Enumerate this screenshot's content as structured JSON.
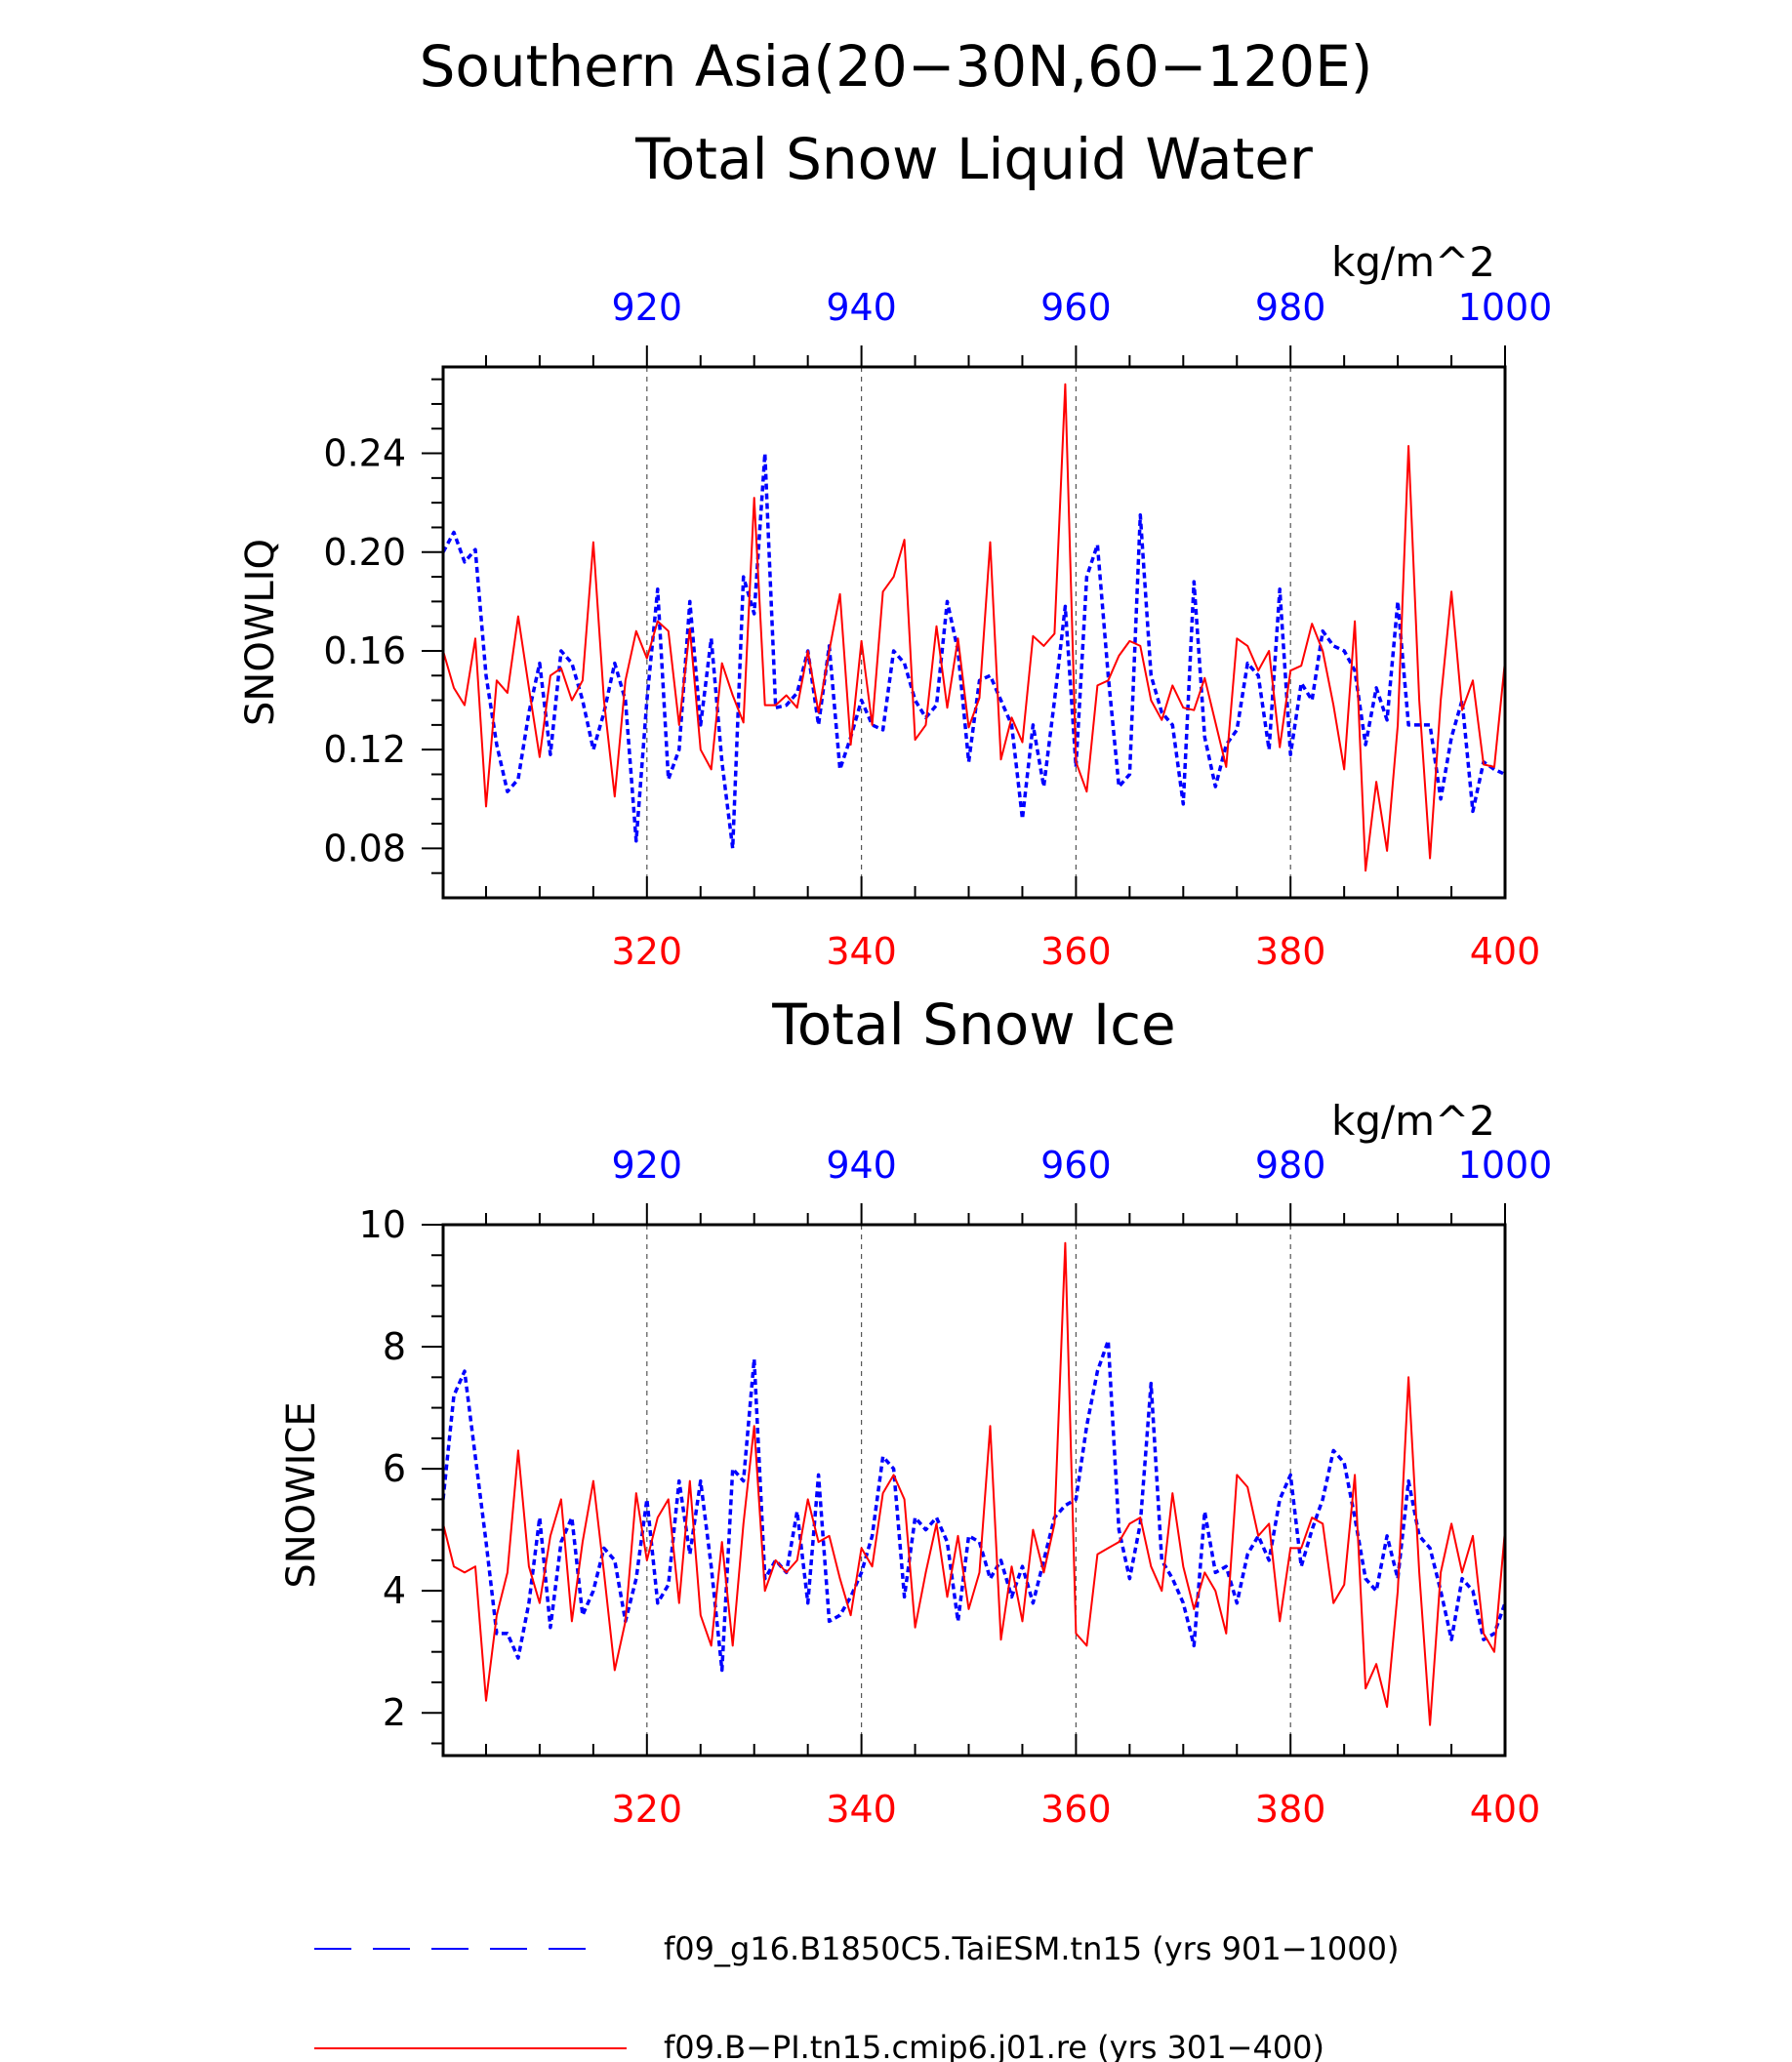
{
  "title_line1": "Southern Asia(20−30N,60−120E)",
  "colors": {
    "blue": "#0000ff",
    "red": "#ff0000",
    "axis": "#000000",
    "grid": "#555555"
  },
  "chart_data": [
    {
      "type": "line",
      "title": "Total Snow Liquid Water",
      "units": "kg/m^2",
      "ylabel": "SNOWLIQ",
      "ylim": [
        0.06,
        0.275
      ],
      "yticks": [
        "0.08",
        "0.12",
        "0.16",
        "0.20",
        "0.24"
      ],
      "top_xlim": [
        901,
        1000
      ],
      "top_xticks": [
        "920",
        "940",
        "960",
        "980",
        "1000"
      ],
      "bottom_xlim": [
        301,
        400
      ],
      "bottom_xticks": [
        "320",
        "340",
        "360",
        "380",
        "400"
      ],
      "grid": "vertical dashed at labeled ticks",
      "series": [
        {
          "name": "f09_g16.B1850C5.TaiESM.tn15 (yrs 901−1000)",
          "style": "dashed",
          "color": "#0000ff",
          "xaxis": "top",
          "x_start": 901,
          "values": [
            0.2,
            0.208,
            0.196,
            0.201,
            0.15,
            0.122,
            0.103,
            0.108,
            0.135,
            0.155,
            0.118,
            0.16,
            0.155,
            0.14,
            0.12,
            0.135,
            0.155,
            0.14,
            0.083,
            0.14,
            0.185,
            0.108,
            0.12,
            0.18,
            0.13,
            0.165,
            0.115,
            0.08,
            0.19,
            0.175,
            0.24,
            0.137,
            0.138,
            0.143,
            0.16,
            0.13,
            0.162,
            0.112,
            0.125,
            0.14,
            0.13,
            0.128,
            0.16,
            0.155,
            0.14,
            0.133,
            0.138,
            0.18,
            0.16,
            0.115,
            0.148,
            0.15,
            0.14,
            0.13,
            0.092,
            0.13,
            0.105,
            0.14,
            0.178,
            0.113,
            0.19,
            0.203,
            0.15,
            0.105,
            0.11,
            0.215,
            0.15,
            0.135,
            0.13,
            0.098,
            0.188,
            0.125,
            0.105,
            0.122,
            0.128,
            0.155,
            0.15,
            0.12,
            0.185,
            0.118,
            0.147,
            0.14,
            0.168,
            0.162,
            0.16,
            0.152,
            0.122,
            0.145,
            0.132,
            0.18,
            0.13,
            0.13,
            0.13,
            0.1,
            0.125,
            0.14,
            0.095,
            0.115,
            0.112,
            0.11
          ]
        },
        {
          "name": "f09.B−PI.tn15.cmip6.j01.re (yrs 301−400)",
          "style": "solid",
          "color": "#ff0000",
          "xaxis": "bottom",
          "x_start": 301,
          "values": [
            0.16,
            0.145,
            0.138,
            0.165,
            0.097,
            0.148,
            0.143,
            0.174,
            0.145,
            0.117,
            0.15,
            0.153,
            0.14,
            0.148,
            0.204,
            0.14,
            0.101,
            0.148,
            0.168,
            0.157,
            0.172,
            0.168,
            0.13,
            0.169,
            0.12,
            0.112,
            0.155,
            0.142,
            0.131,
            0.222,
            0.138,
            0.138,
            0.142,
            0.137,
            0.16,
            0.135,
            0.16,
            0.183,
            0.122,
            0.164,
            0.13,
            0.184,
            0.19,
            0.205,
            0.124,
            0.13,
            0.17,
            0.137,
            0.165,
            0.129,
            0.141,
            0.204,
            0.116,
            0.133,
            0.123,
            0.166,
            0.162,
            0.167,
            0.268,
            0.115,
            0.103,
            0.146,
            0.148,
            0.158,
            0.164,
            0.162,
            0.14,
            0.132,
            0.146,
            0.137,
            0.136,
            0.149,
            0.131,
            0.113,
            0.165,
            0.162,
            0.152,
            0.16,
            0.121,
            0.152,
            0.154,
            0.171,
            0.16,
            0.138,
            0.112,
            0.172,
            0.071,
            0.107,
            0.079,
            0.13,
            0.243,
            0.14,
            0.076,
            0.14,
            0.184,
            0.136,
            0.148,
            0.114,
            0.113,
            0.156
          ]
        }
      ]
    },
    {
      "type": "line",
      "title": "Total Snow Ice",
      "units": "kg/m^2",
      "ylabel": "SNOWICE",
      "ylim": [
        1.3,
        10
      ],
      "yticks": [
        "2",
        "4",
        "6",
        "8",
        "10"
      ],
      "top_xlim": [
        901,
        1000
      ],
      "top_xticks": [
        "920",
        "940",
        "960",
        "980",
        "1000"
      ],
      "bottom_xlim": [
        301,
        400
      ],
      "bottom_xticks": [
        "320",
        "340",
        "360",
        "380",
        "400"
      ],
      "grid": "vertical dashed at labeled ticks",
      "series": [
        {
          "name": "f09_g16.B1850C5.TaiESM.tn15 (yrs 901−1000)",
          "style": "dashed",
          "color": "#0000ff",
          "xaxis": "top",
          "x_start": 901,
          "values": [
            5.5,
            7.2,
            7.6,
            6.2,
            4.8,
            3.3,
            3.3,
            2.9,
            3.8,
            5.2,
            3.4,
            4.8,
            5.2,
            3.6,
            4.0,
            4.7,
            4.5,
            3.5,
            4.2,
            5.5,
            3.8,
            4.1,
            5.8,
            4.6,
            5.8,
            4.4,
            2.7,
            6.0,
            5.8,
            7.8,
            4.2,
            4.5,
            4.3,
            5.3,
            3.8,
            5.9,
            3.5,
            3.6,
            3.9,
            4.3,
            4.9,
            6.2,
            6.0,
            3.9,
            5.2,
            5.0,
            5.2,
            4.8,
            3.5,
            4.9,
            4.8,
            4.2,
            4.5,
            3.9,
            4.4,
            3.8,
            4.5,
            5.2,
            5.4,
            5.5,
            6.7,
            7.6,
            8.1,
            5.0,
            4.2,
            5.1,
            7.4,
            4.5,
            4.2,
            3.8,
            3.1,
            5.3,
            4.3,
            4.4,
            3.8,
            4.6,
            4.9,
            4.5,
            5.5,
            5.9,
            4.4,
            5.0,
            5.5,
            6.3,
            6.1,
            5.2,
            4.2,
            4.0,
            4.9,
            4.2,
            5.8,
            4.9,
            4.7,
            4.0,
            3.2,
            4.2,
            4.0,
            3.2,
            3.3,
            3.8
          ]
        },
        {
          "name": "f09.B−PI.tn15.cmip6.j01.re (yrs 301−400)",
          "style": "solid",
          "color": "#ff0000",
          "xaxis": "bottom",
          "x_start": 301,
          "values": [
            5.1,
            4.4,
            4.3,
            4.4,
            2.2,
            3.6,
            4.3,
            6.3,
            4.4,
            3.8,
            4.9,
            5.5,
            3.5,
            4.8,
            5.8,
            4.3,
            2.7,
            3.5,
            5.6,
            4.5,
            5.2,
            5.5,
            3.8,
            5.8,
            3.6,
            3.1,
            4.8,
            3.1,
            5.1,
            6.7,
            4.0,
            4.5,
            4.3,
            4.5,
            5.5,
            4.8,
            4.9,
            4.2,
            3.6,
            4.7,
            4.4,
            5.6,
            5.9,
            5.5,
            3.4,
            4.3,
            5.1,
            3.9,
            4.9,
            3.7,
            4.3,
            6.7,
            3.2,
            4.4,
            3.5,
            5.0,
            4.3,
            5.1,
            9.7,
            3.3,
            3.1,
            4.6,
            4.7,
            4.8,
            5.1,
            5.2,
            4.4,
            4.0,
            5.6,
            4.4,
            3.7,
            4.3,
            4.0,
            3.3,
            5.9,
            5.7,
            4.9,
            5.1,
            3.5,
            4.7,
            4.7,
            5.2,
            5.1,
            3.8,
            4.1,
            5.9,
            2.4,
            2.8,
            2.1,
            4.0,
            7.5,
            4.3,
            1.8,
            4.3,
            5.1,
            4.3,
            4.9,
            3.3,
            3.0,
            5.0
          ]
        }
      ]
    }
  ],
  "legend": [
    {
      "label": "f09_g16.B1850C5.TaiESM.tn15 (yrs 901−1000)",
      "style": "dashed",
      "color": "#0000ff"
    },
    {
      "label": "f09.B−PI.tn15.cmip6.j01.re (yrs 301−400)",
      "style": "solid",
      "color": "#ff0000"
    }
  ]
}
